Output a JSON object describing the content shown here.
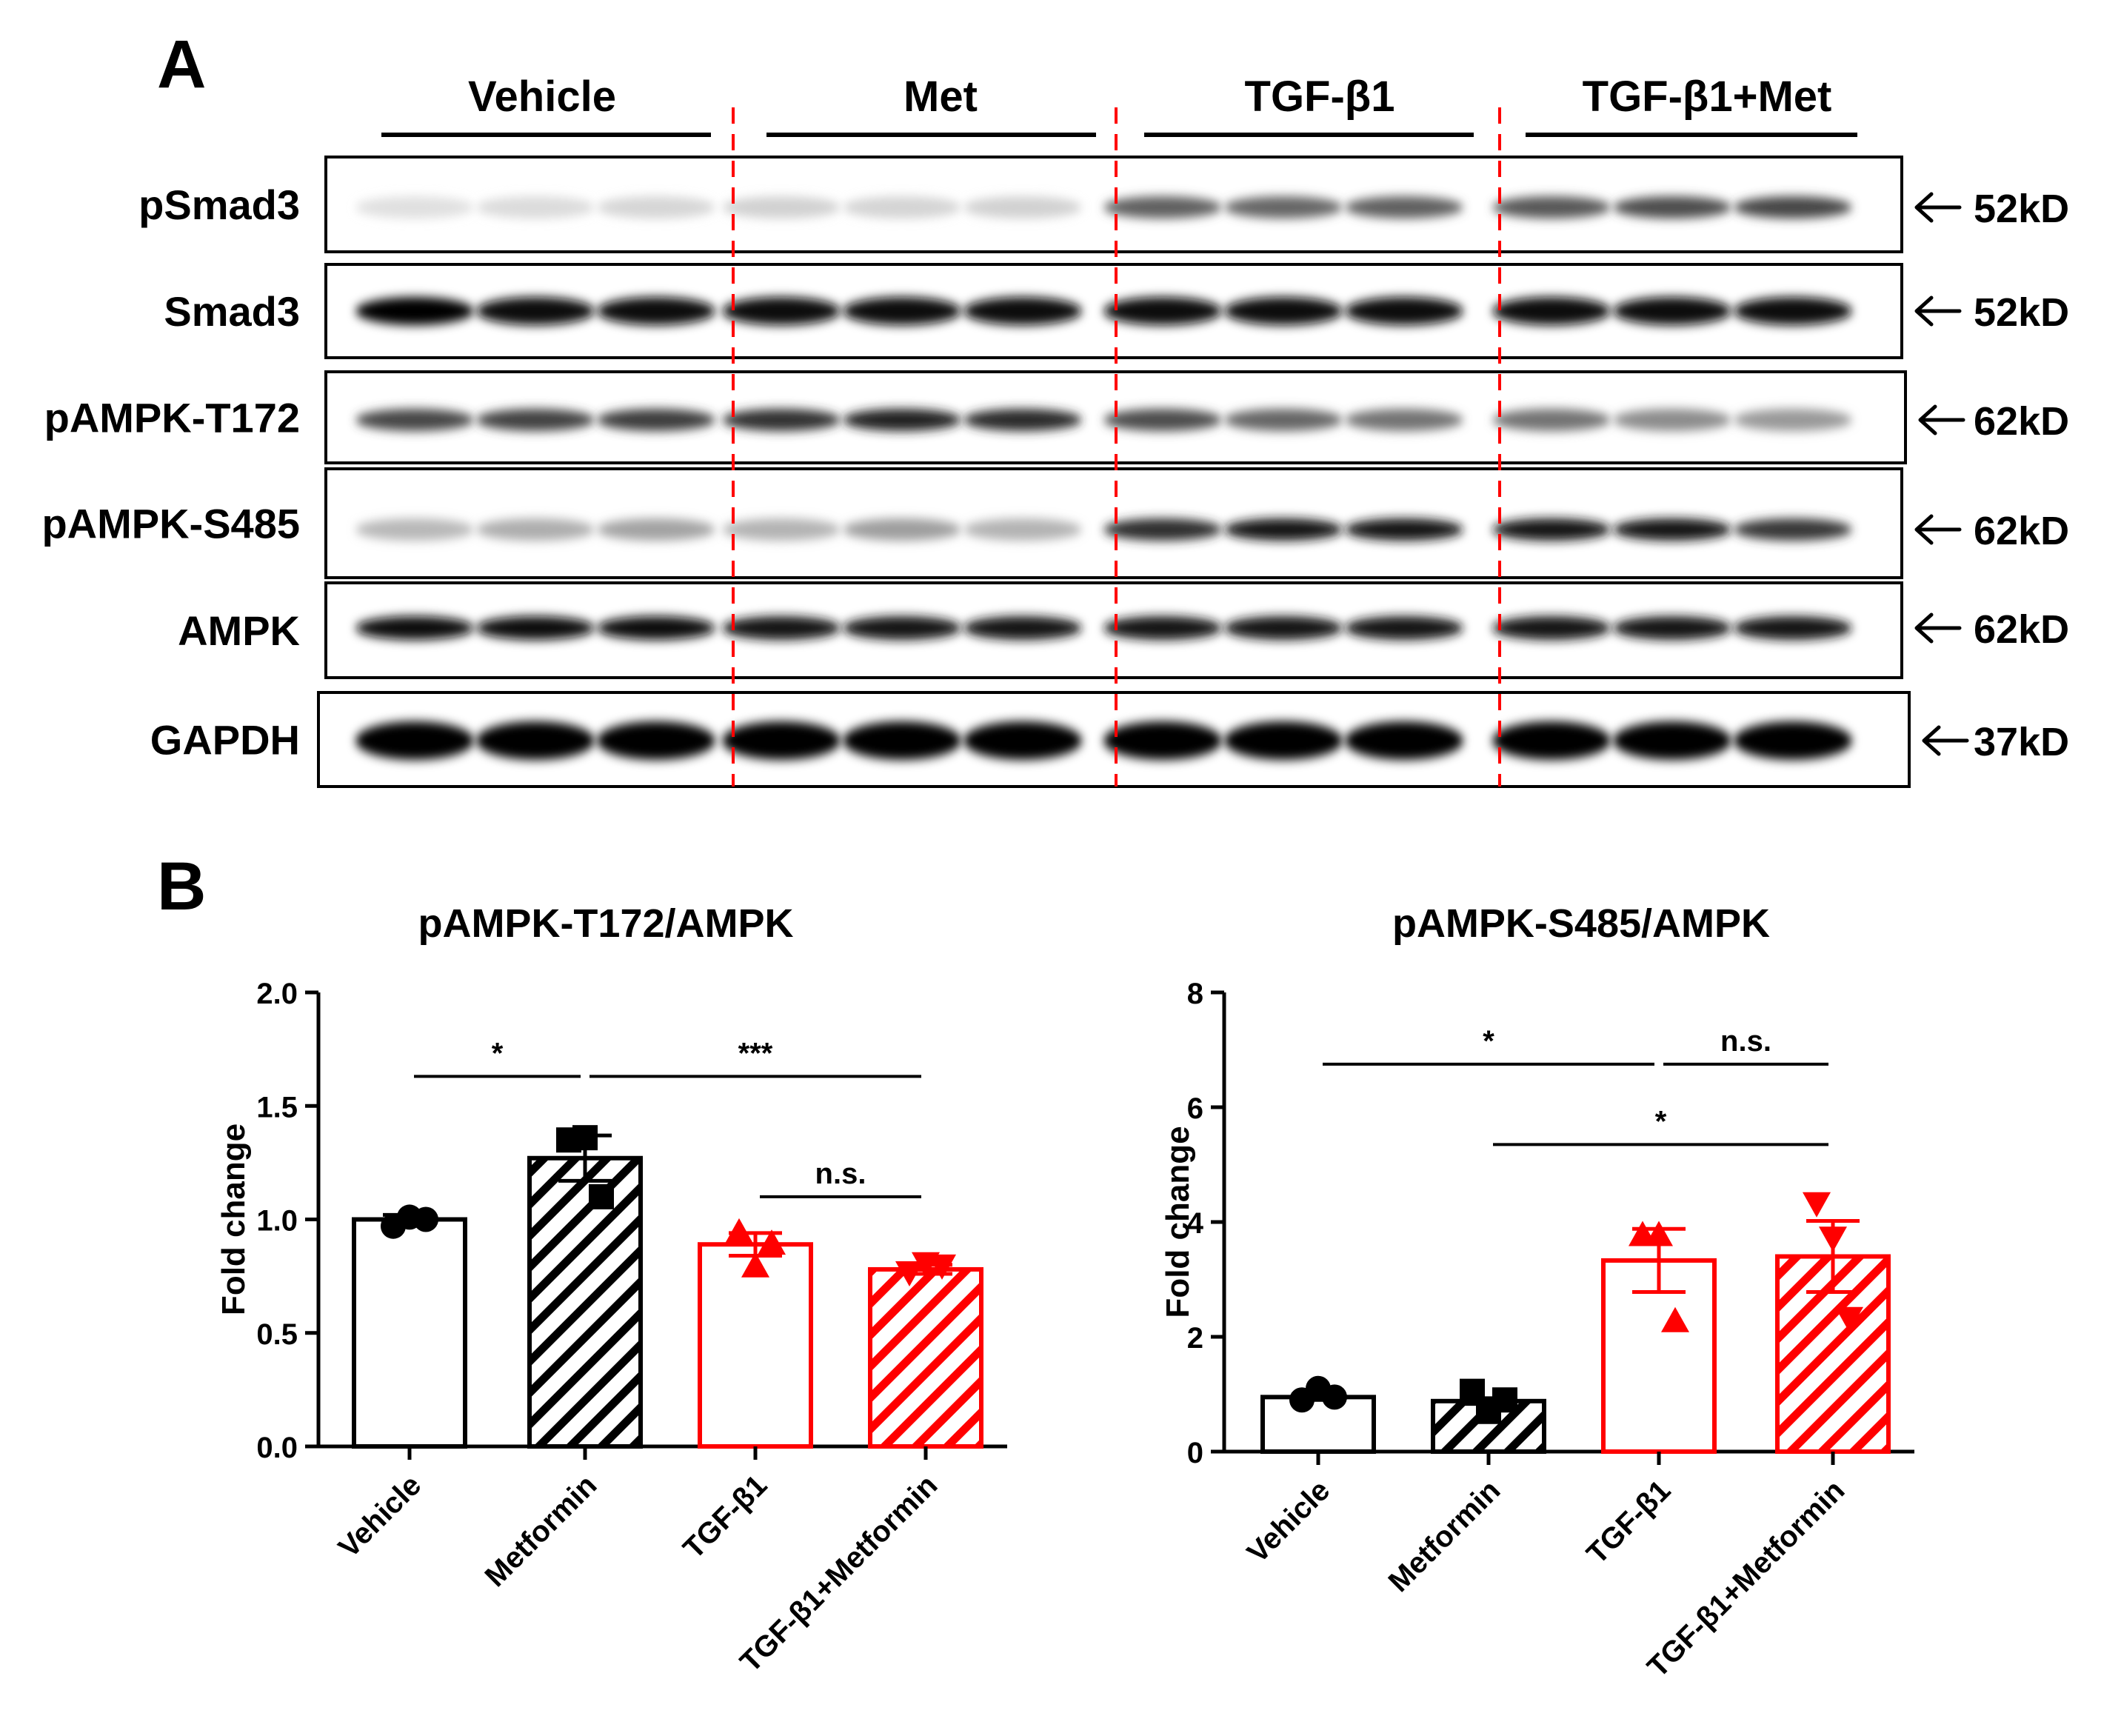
{
  "panel_a": {
    "label": "A",
    "groups": [
      "Vehicle",
      "Met",
      "TGF-β1",
      "TGF-β1+Met"
    ],
    "blots": [
      {
        "name": "pSmad3",
        "size": "52kD",
        "intensity": [
          0.12,
          0.14,
          0.16,
          0.18,
          0.17,
          0.18,
          0.62,
          0.6,
          0.62,
          0.65,
          0.7,
          0.72
        ]
      },
      {
        "name": "Smad3",
        "size": "52kD",
        "intensity": [
          0.98,
          0.95,
          0.95,
          0.95,
          0.95,
          0.95,
          0.96,
          0.95,
          0.95,
          0.95,
          0.95,
          0.95
        ]
      },
      {
        "name": "pAMPK-T172",
        "size": "62kD",
        "intensity": [
          0.72,
          0.74,
          0.76,
          0.8,
          0.86,
          0.84,
          0.7,
          0.6,
          0.55,
          0.55,
          0.45,
          0.4
        ]
      },
      {
        "name": "pAMPK-S485",
        "size": "62kD",
        "intensity": [
          0.28,
          0.32,
          0.36,
          0.3,
          0.38,
          0.3,
          0.82,
          0.92,
          0.92,
          0.9,
          0.92,
          0.78
        ]
      },
      {
        "name": "AMPK",
        "size": "62kD",
        "intensity": [
          0.95,
          0.95,
          0.95,
          0.93,
          0.93,
          0.93,
          0.93,
          0.93,
          0.93,
          0.93,
          0.93,
          0.93
        ]
      },
      {
        "name": "GAPDH",
        "size": "37kD",
        "intensity": [
          1,
          1,
          1,
          1,
          1,
          1,
          1,
          1,
          1,
          1,
          1,
          1
        ]
      }
    ]
  },
  "panel_b": {
    "label": "B"
  },
  "chart_data": [
    {
      "type": "bar",
      "title": "pAMPK-T172/AMPK",
      "ylabel": "Fold change",
      "xlabel": "",
      "ylim": [
        0,
        2.0
      ],
      "yticks": [
        "0.0",
        "0.5",
        "1.0",
        "1.5",
        "2.0"
      ],
      "categories": [
        "Vehicle",
        "Metformin",
        "TGF-β1",
        "TGF-β1+Metformin"
      ],
      "values": [
        1.0,
        1.27,
        0.89,
        0.78
      ],
      "sem": [
        0.02,
        0.1,
        0.05,
        0.02
      ],
      "points": [
        [
          0.97,
          1.01,
          1.0
        ],
        [
          1.35,
          1.36,
          1.1
        ],
        [
          0.95,
          0.8,
          0.9
        ],
        [
          0.76,
          0.8,
          0.79
        ]
      ],
      "markers": [
        "circle",
        "square",
        "triangle-up",
        "triangle-down"
      ],
      "colors": [
        "#000000",
        "#000000",
        "#ff0000",
        "#ff0000"
      ],
      "hatched": [
        false,
        true,
        false,
        true
      ],
      "significance": [
        {
          "from": 0,
          "to": 1,
          "label": "*",
          "y": 1.63
        },
        {
          "from": 1,
          "to": 3,
          "label": "***",
          "y": 1.63
        },
        {
          "from": 2,
          "to": 3,
          "label": "n.s.",
          "y": 1.1
        }
      ]
    },
    {
      "type": "bar",
      "title": "pAMPK-S485/AMPK",
      "ylabel": "Fold change",
      "xlabel": "",
      "ylim": [
        0,
        8
      ],
      "yticks": [
        "0",
        "2",
        "4",
        "6",
        "8"
      ],
      "categories": [
        "Vehicle",
        "Metformin",
        "TGF-β1",
        "TGF-β1+Metformin"
      ],
      "values": [
        0.95,
        0.88,
        3.33,
        3.4
      ],
      "sem": [
        0.05,
        0.05,
        0.55,
        0.62
      ],
      "points": [
        [
          0.9,
          1.1,
          0.95
        ],
        [
          1.05,
          0.7,
          0.9
        ],
        [
          3.8,
          3.8,
          2.3
        ],
        [
          4.3,
          3.7,
          2.3
        ]
      ],
      "markers": [
        "circle",
        "square",
        "triangle-up",
        "triangle-down"
      ],
      "colors": [
        "#000000",
        "#000000",
        "#ff0000",
        "#ff0000"
      ],
      "hatched": [
        false,
        true,
        false,
        true
      ],
      "significance": [
        {
          "from": 0,
          "to": 2,
          "label": "*",
          "y": 6.75
        },
        {
          "from": 2,
          "to": 3,
          "label": "n.s.",
          "y": 6.75
        },
        {
          "from": 1,
          "to": 3,
          "label": "*",
          "y": 5.35
        }
      ]
    }
  ]
}
